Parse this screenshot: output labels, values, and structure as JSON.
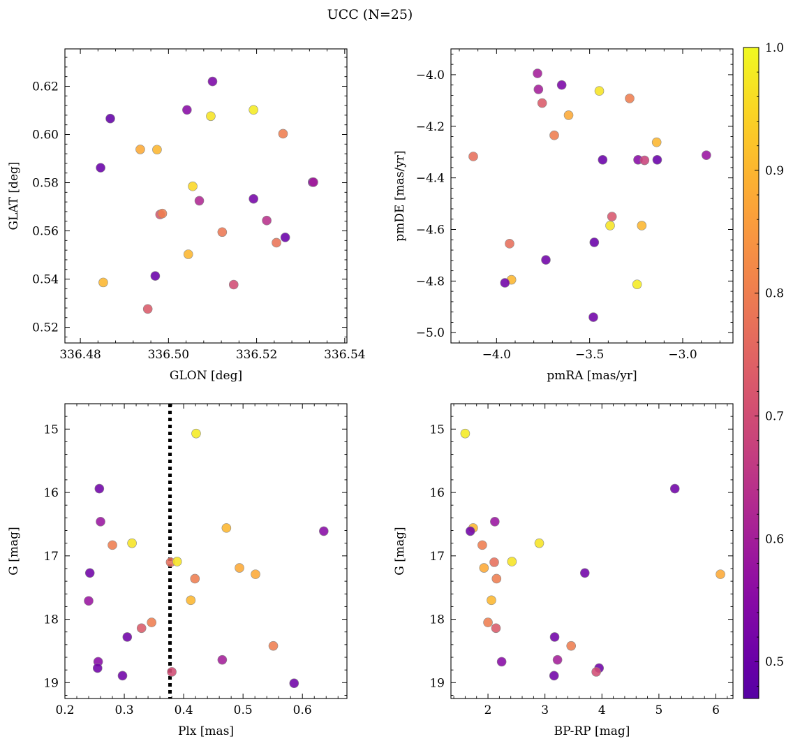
{
  "title": "UCC (N=25)",
  "chart_data": [
    {
      "type": "scatter",
      "xlabel": "GLON [deg]",
      "ylabel": "GLAT [deg]",
      "xlim": [
        336.4765,
        336.5405
      ],
      "ylim": [
        0.5135,
        0.6355
      ],
      "xticks": [
        336.48,
        336.5,
        336.52,
        336.54
      ],
      "xtick_labels": [
        "336.48",
        "336.50",
        "336.52",
        "336.54"
      ],
      "yticks": [
        0.52,
        0.54,
        0.56,
        0.58,
        0.6,
        0.62
      ],
      "ytick_labels": [
        "0.52",
        "0.54",
        "0.56",
        "0.58",
        "0.60",
        "0.62"
      ],
      "points": [
        {
          "x": 336.4868,
          "y": 0.6066,
          "c": 0.49
        },
        {
          "x": 336.51,
          "y": 0.622,
          "c": 0.53
        },
        {
          "x": 336.5042,
          "y": 0.6102,
          "c": 0.55
        },
        {
          "x": 336.5096,
          "y": 0.6076,
          "c": 0.97
        },
        {
          "x": 336.5193,
          "y": 0.6102,
          "c": 0.98
        },
        {
          "x": 336.526,
          "y": 0.6003,
          "c": 0.8
        },
        {
          "x": 336.4936,
          "y": 0.5938,
          "c": 0.88
        },
        {
          "x": 336.4974,
          "y": 0.5937,
          "c": 0.9
        },
        {
          "x": 336.4846,
          "y": 0.5862,
          "c": 0.5
        },
        {
          "x": 336.5055,
          "y": 0.5785,
          "c": 0.95
        },
        {
          "x": 336.5327,
          "y": 0.5802,
          "c": 0.51
        },
        {
          "x": 336.5329,
          "y": 0.5802,
          "c": 0.6
        },
        {
          "x": 336.5193,
          "y": 0.5733,
          "c": 0.52
        },
        {
          "x": 336.507,
          "y": 0.5725,
          "c": 0.62
        },
        {
          "x": 336.4981,
          "y": 0.5668,
          "c": 0.72
        },
        {
          "x": 336.4986,
          "y": 0.5672,
          "c": 0.8
        },
        {
          "x": 336.5122,
          "y": 0.5595,
          "c": 0.79
        },
        {
          "x": 336.5223,
          "y": 0.5643,
          "c": 0.64
        },
        {
          "x": 336.5265,
          "y": 0.5573,
          "c": 0.5
        },
        {
          "x": 336.5245,
          "y": 0.5551,
          "c": 0.78
        },
        {
          "x": 336.5045,
          "y": 0.5503,
          "c": 0.9
        },
        {
          "x": 336.497,
          "y": 0.5413,
          "c": 0.5
        },
        {
          "x": 336.4852,
          "y": 0.5386,
          "c": 0.9
        },
        {
          "x": 336.5148,
          "y": 0.5377,
          "c": 0.7
        },
        {
          "x": 336.4953,
          "y": 0.5276,
          "c": 0.73
        }
      ]
    },
    {
      "type": "scatter",
      "xlabel": "pmRA [mas/yr]",
      "ylabel": "pmDE [mas/yr]",
      "xlim": [
        -4.245,
        -2.73
      ],
      "ylim": [
        -5.04,
        -3.9
      ],
      "xticks": [
        -4.0,
        -3.5,
        -3.0
      ],
      "xtick_labels": [
        "−4.0",
        "−3.5",
        "−3.0"
      ],
      "yticks": [
        -5.0,
        -4.8,
        -4.6,
        -4.4,
        -4.2,
        -4.0
      ],
      "ytick_labels": [
        "−5.0",
        "−4.8",
        "−4.6",
        "−4.4",
        "−4.2",
        "−4.0"
      ],
      "points": [
        {
          "x": -3.78,
          "y": -3.995,
          "c": 0.6
        },
        {
          "x": -3.775,
          "y": -4.057,
          "c": 0.6
        },
        {
          "x": -3.65,
          "y": -4.04,
          "c": 0.53
        },
        {
          "x": -3.448,
          "y": -4.063,
          "c": 0.97
        },
        {
          "x": -3.755,
          "y": -4.11,
          "c": 0.73
        },
        {
          "x": -3.285,
          "y": -4.092,
          "c": 0.8
        },
        {
          "x": -3.613,
          "y": -4.157,
          "c": 0.88
        },
        {
          "x": -3.69,
          "y": -4.235,
          "c": 0.8
        },
        {
          "x": -3.14,
          "y": -4.262,
          "c": 0.9
        },
        {
          "x": -4.125,
          "y": -4.317,
          "c": 0.77
        },
        {
          "x": -3.43,
          "y": -4.33,
          "c": 0.5
        },
        {
          "x": -3.24,
          "y": -4.33,
          "c": 0.55
        },
        {
          "x": -3.205,
          "y": -4.332,
          "c": 0.68
        },
        {
          "x": -3.137,
          "y": -4.33,
          "c": 0.5
        },
        {
          "x": -2.873,
          "y": -4.312,
          "c": 0.58
        },
        {
          "x": -3.38,
          "y": -4.55,
          "c": 0.72
        },
        {
          "x": -3.39,
          "y": -4.585,
          "c": 0.97
        },
        {
          "x": -3.22,
          "y": -4.585,
          "c": 0.9
        },
        {
          "x": -3.475,
          "y": -4.65,
          "c": 0.5
        },
        {
          "x": -3.93,
          "y": -4.655,
          "c": 0.77
        },
        {
          "x": -3.735,
          "y": -4.718,
          "c": 0.51
        },
        {
          "x": -3.92,
          "y": -4.795,
          "c": 0.9
        },
        {
          "x": -3.955,
          "y": -4.807,
          "c": 0.51
        },
        {
          "x": -3.245,
          "y": -4.813,
          "c": 0.98
        },
        {
          "x": -3.48,
          "y": -4.94,
          "c": 0.51
        }
      ]
    },
    {
      "type": "scatter",
      "xlabel": "Plx [mas]",
      "ylabel": "G [mag]",
      "xlim": [
        0.2,
        0.675
      ],
      "ylim": [
        19.25,
        14.6
      ],
      "y_inverted": true,
      "vline": 0.377,
      "xticks": [
        0.2,
        0.3,
        0.4,
        0.5,
        0.6
      ],
      "xtick_labels": [
        "0.2",
        "0.3",
        "0.4",
        "0.5",
        "0.6"
      ],
      "yticks": [
        15,
        16,
        17,
        18,
        19
      ],
      "ytick_labels": [
        "15",
        "16",
        "17",
        "18",
        "19"
      ],
      "points": [
        {
          "x": 0.421,
          "y": 15.07,
          "c": 0.98
        },
        {
          "x": 0.258,
          "y": 15.94,
          "c": 0.51
        },
        {
          "x": 0.26,
          "y": 16.46,
          "c": 0.58
        },
        {
          "x": 0.472,
          "y": 16.56,
          "c": 0.9
        },
        {
          "x": 0.636,
          "y": 16.61,
          "c": 0.55
        },
        {
          "x": 0.28,
          "y": 16.83,
          "c": 0.8
        },
        {
          "x": 0.313,
          "y": 16.8,
          "c": 0.97
        },
        {
          "x": 0.378,
          "y": 17.1,
          "c": 0.77
        },
        {
          "x": 0.389,
          "y": 17.09,
          "c": 0.97
        },
        {
          "x": 0.494,
          "y": 17.19,
          "c": 0.88
        },
        {
          "x": 0.242,
          "y": 17.27,
          "c": 0.51
        },
        {
          "x": 0.521,
          "y": 17.29,
          "c": 0.88
        },
        {
          "x": 0.419,
          "y": 17.36,
          "c": 0.8
        },
        {
          "x": 0.24,
          "y": 17.71,
          "c": 0.58
        },
        {
          "x": 0.412,
          "y": 17.7,
          "c": 0.9
        },
        {
          "x": 0.346,
          "y": 18.05,
          "c": 0.8
        },
        {
          "x": 0.329,
          "y": 18.14,
          "c": 0.73
        },
        {
          "x": 0.305,
          "y": 18.28,
          "c": 0.51
        },
        {
          "x": 0.551,
          "y": 18.42,
          "c": 0.8
        },
        {
          "x": 0.465,
          "y": 18.64,
          "c": 0.6
        },
        {
          "x": 0.256,
          "y": 18.67,
          "c": 0.55
        },
        {
          "x": 0.255,
          "y": 18.77,
          "c": 0.51
        },
        {
          "x": 0.38,
          "y": 18.83,
          "c": 0.7
        },
        {
          "x": 0.297,
          "y": 18.89,
          "c": 0.51
        },
        {
          "x": 0.586,
          "y": 19.01,
          "c": 0.51
        }
      ]
    },
    {
      "type": "scatter",
      "xlabel": "BP-RP [mag]",
      "ylabel": "G [mag]",
      "xlim": [
        1.35,
        6.3
      ],
      "ylim": [
        19.25,
        14.6
      ],
      "y_inverted": true,
      "xticks": [
        2,
        3,
        4,
        5,
        6
      ],
      "xtick_labels": [
        "2",
        "3",
        "4",
        "5",
        "6"
      ],
      "yticks": [
        15,
        16,
        17,
        18,
        19
      ],
      "ytick_labels": [
        "15",
        "16",
        "17",
        "18",
        "19"
      ],
      "points": [
        {
          "x": 1.6,
          "y": 15.07,
          "c": 0.98
        },
        {
          "x": 5.28,
          "y": 15.94,
          "c": 0.51
        },
        {
          "x": 2.12,
          "y": 16.46,
          "c": 0.58
        },
        {
          "x": 1.74,
          "y": 16.56,
          "c": 0.9
        },
        {
          "x": 1.69,
          "y": 16.61,
          "c": 0.51
        },
        {
          "x": 1.9,
          "y": 16.83,
          "c": 0.8
        },
        {
          "x": 2.9,
          "y": 16.8,
          "c": 0.97
        },
        {
          "x": 2.11,
          "y": 17.1,
          "c": 0.77
        },
        {
          "x": 2.42,
          "y": 17.09,
          "c": 0.97
        },
        {
          "x": 1.93,
          "y": 17.19,
          "c": 0.88
        },
        {
          "x": 3.7,
          "y": 17.27,
          "c": 0.51
        },
        {
          "x": 6.08,
          "y": 17.29,
          "c": 0.88
        },
        {
          "x": 2.15,
          "y": 17.36,
          "c": 0.8
        },
        {
          "x": 2.06,
          "y": 17.7,
          "c": 0.9
        },
        {
          "x": 2.0,
          "y": 18.05,
          "c": 0.8
        },
        {
          "x": 2.14,
          "y": 18.14,
          "c": 0.73
        },
        {
          "x": 3.17,
          "y": 18.28,
          "c": 0.51
        },
        {
          "x": 3.46,
          "y": 18.42,
          "c": 0.8
        },
        {
          "x": 3.22,
          "y": 18.64,
          "c": 0.6
        },
        {
          "x": 2.24,
          "y": 18.67,
          "c": 0.55
        },
        {
          "x": 3.95,
          "y": 18.77,
          "c": 0.51
        },
        {
          "x": 3.9,
          "y": 18.83,
          "c": 0.7
        },
        {
          "x": 3.16,
          "y": 18.89,
          "c": 0.51
        }
      ]
    }
  ],
  "colorbar": {
    "cmap": "plasma",
    "vmin": 0.47,
    "vmax": 1.0,
    "ticks": [
      0.5,
      0.6,
      0.7,
      0.8,
      0.9,
      1.0
    ],
    "tick_labels": [
      "0.5",
      "0.6",
      "0.7",
      "0.8",
      "0.9",
      "1.0"
    ]
  }
}
